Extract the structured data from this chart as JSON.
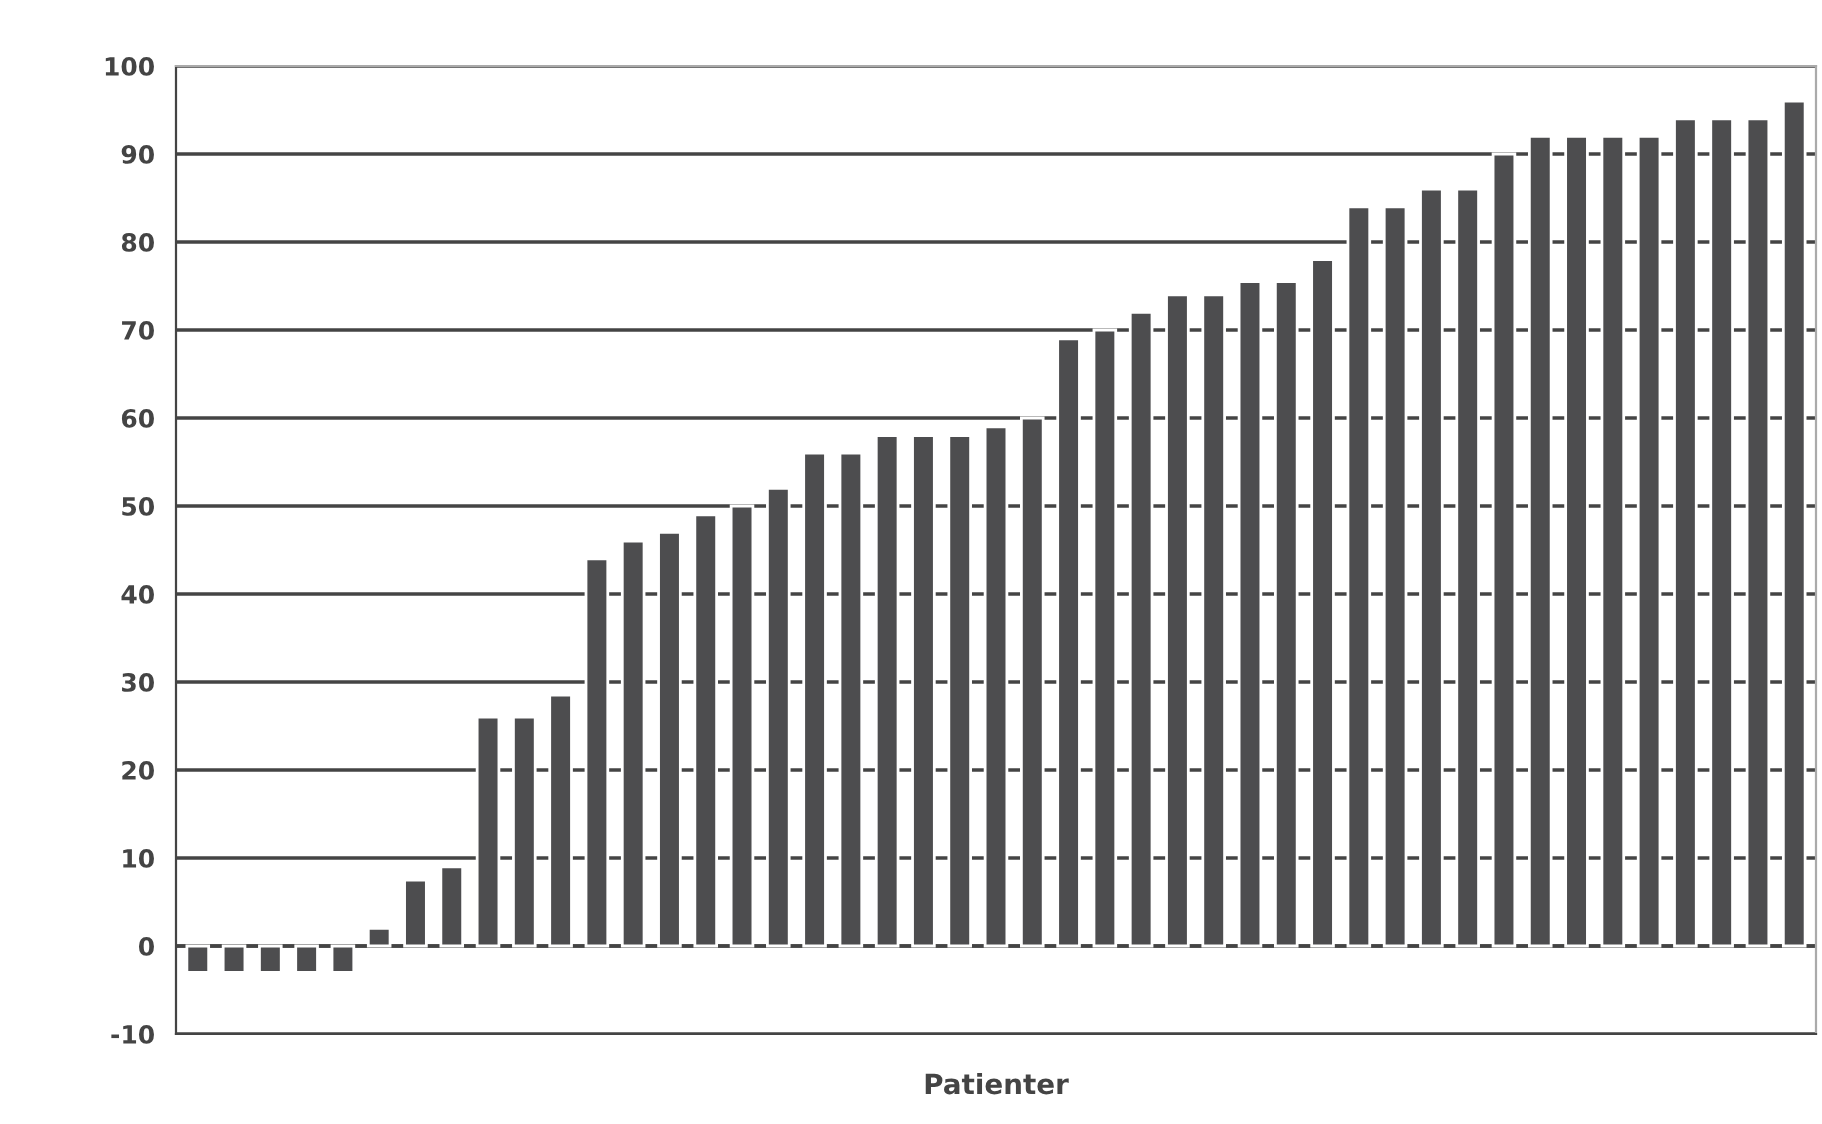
{
  "chart_data": {
    "type": "bar",
    "xlabel": "Patienter",
    "categories": [
      null,
      null,
      null,
      null,
      null,
      null,
      null,
      null,
      null,
      null,
      null,
      null,
      null,
      null,
      null,
      null,
      null,
      null,
      null,
      null,
      null,
      null,
      null,
      null,
      null,
      null,
      null,
      null,
      null,
      null,
      null,
      null,
      null,
      null,
      null,
      null,
      null,
      null,
      null,
      null,
      null,
      null,
      null,
      null,
      null
    ],
    "values": [
      -3,
      -3,
      -3,
      -3,
      -3,
      2,
      7.5,
      9,
      26,
      26,
      28.5,
      44,
      46,
      47,
      49,
      50,
      52,
      56,
      56,
      58,
      58,
      58,
      59,
      60,
      69,
      70,
      72,
      74,
      74,
      75.5,
      75.5,
      78,
      84,
      84,
      86,
      86,
      90,
      92,
      92,
      92,
      92,
      94,
      94,
      94,
      96
    ],
    "color": "#4d4d4f",
    "ylim": [
      -10,
      100
    ],
    "yticks": [
      -10,
      0,
      10,
      20,
      30,
      40,
      50,
      60,
      70,
      80,
      90,
      100
    ],
    "grid": "y",
    "tick_labels": "y"
  }
}
